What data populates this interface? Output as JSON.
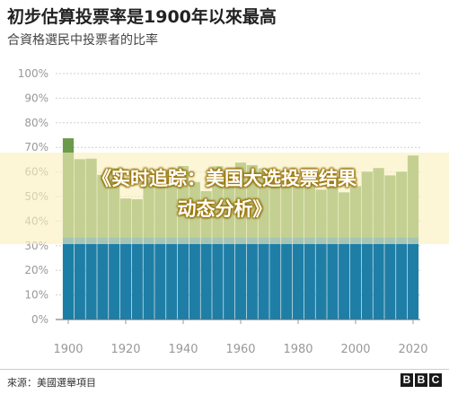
{
  "header": {
    "title": "初步估算投票率是1900年以來最高",
    "subtitle": "合資格選民中投票者的比率"
  },
  "overlay": {
    "line1": "《实时追踪：美国大选投票结果",
    "line2": "动态分析》"
  },
  "footer": {
    "source": "來源：美國選舉項目",
    "logo_letters": [
      "B",
      "B",
      "C"
    ]
  },
  "colors": {
    "turnout": "#6a9b4a",
    "base": "#1f7ea6",
    "highlight": "#1a7ea5",
    "grid": "#cfcfcf",
    "axis_text": "#999999"
  },
  "chart_data": {
    "type": "bar",
    "title": "初步估算投票率是1900年以來最高",
    "subtitle": "合資格選民中投票者的比率",
    "xlabel": "",
    "ylabel": "",
    "ylim": [
      0,
      100
    ],
    "y_ticks": [
      "0%",
      "10%",
      "20%",
      "30%",
      "40%",
      "50%",
      "60%",
      "70%",
      "80%",
      "90%",
      "100%"
    ],
    "x_ticks": [
      "1900",
      "1920",
      "1940",
      "1960",
      "1980",
      "2000",
      "2020"
    ],
    "categories": [
      "1900",
      "1904",
      "1908",
      "1912",
      "1916",
      "1920",
      "1924",
      "1928",
      "1932",
      "1936",
      "1940",
      "1944",
      "1948",
      "1952",
      "1956",
      "1960",
      "1964",
      "1968",
      "1972",
      "1976",
      "1980",
      "1984",
      "1988",
      "1992",
      "1996",
      "2000",
      "2004",
      "2008",
      "2012",
      "2016",
      "2020"
    ],
    "values": [
      73.7,
      65.2,
      65.4,
      58.8,
      61.6,
      49.2,
      48.9,
      56.9,
      56.9,
      61.0,
      62.4,
      55.9,
      52.2,
      62.3,
      60.2,
      63.8,
      62.8,
      61.5,
      56.2,
      54.8,
      54.2,
      55.2,
      52.8,
      58.1,
      51.7,
      54.2,
      60.1,
      61.6,
      58.6,
      60.1,
      66.7
    ],
    "grid": true
  }
}
